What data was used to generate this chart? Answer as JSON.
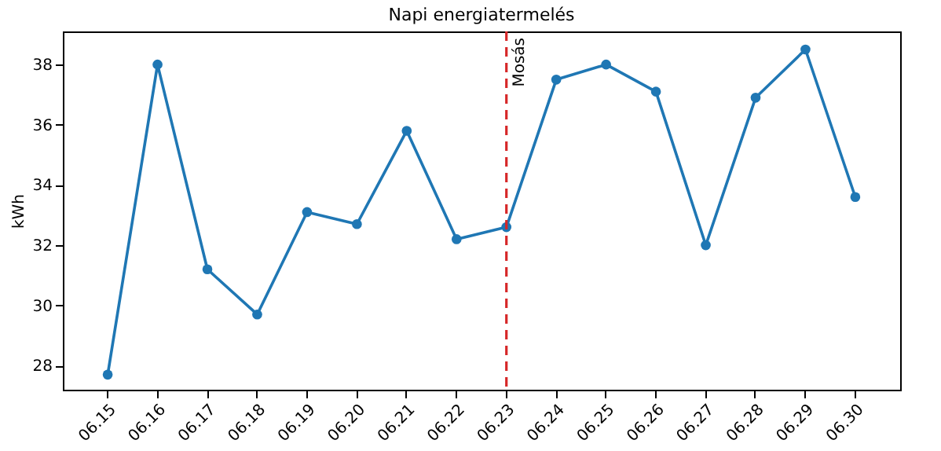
{
  "chart_data": {
    "type": "line",
    "title": "Napi energiatermelés",
    "ylabel": "kWh",
    "categories": [
      "06.15",
      "06.16",
      "06.17",
      "06.18",
      "06.19",
      "06.20",
      "06.21",
      "06.22",
      "06.23",
      "06.24",
      "06.25",
      "06.26",
      "06.27",
      "06.28",
      "06.29",
      "06.30"
    ],
    "series": [
      {
        "color": "#1f77b4",
        "values": [
          27.7,
          38.0,
          31.2,
          29.7,
          33.1,
          32.7,
          35.8,
          32.2,
          32.6,
          37.5,
          38.0,
          37.1,
          32.0,
          36.9,
          38.5,
          33.6
        ]
      }
    ],
    "ylim": [
      27.2,
      39.1
    ],
    "yticks": [
      28,
      30,
      32,
      34,
      36,
      38
    ],
    "grid": false,
    "marker": "circle",
    "line_style": "solid",
    "ref_lines": [
      {
        "axis": "x",
        "value": "06.23",
        "label": "Mosás",
        "color": "#d62728",
        "line_style": "dashed"
      }
    ]
  }
}
